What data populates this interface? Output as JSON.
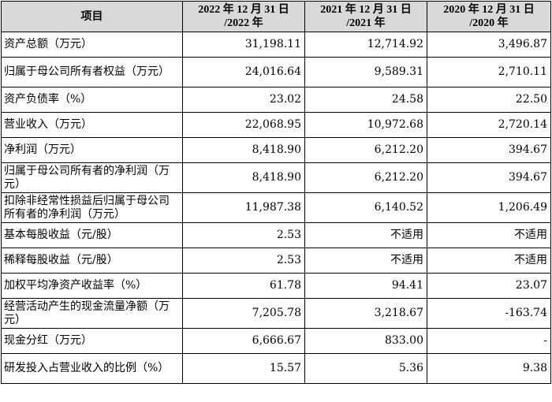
{
  "table": {
    "headers": [
      {
        "line1": "项目",
        "line2": ""
      },
      {
        "line1": "2022 年 12 月 31 日",
        "line2": "/2022 年"
      },
      {
        "line1": "2021 年 12 月 31 日",
        "line2": "/2021 年"
      },
      {
        "line1": "2020 年 12 月 31 日",
        "line2": "/2020 年"
      }
    ],
    "rows": [
      {
        "label": "资产总额（万元）",
        "v2022": "31,198.11",
        "v2021": "12,714.92",
        "v2020": "3,496.87"
      },
      {
        "label": "归属于母公司所有者权益（万元）",
        "v2022": "24,016.64",
        "v2021": "9,589.31",
        "v2020": "2,710.11"
      },
      {
        "label": "资产负债率（%）",
        "v2022": "23.02",
        "v2021": "24.58",
        "v2020": "22.50"
      },
      {
        "label": "营业收入（万元）",
        "v2022": "22,068.95",
        "v2021": "10,972.68",
        "v2020": "2,720.14"
      },
      {
        "label": "净利润（万元）",
        "v2022": "8,418.90",
        "v2021": "6,212.20",
        "v2020": "394.67"
      },
      {
        "label": "归属于母公司所有者的净利润（万元）",
        "v2022": "8,418.90",
        "v2021": "6,212.20",
        "v2020": "394.67"
      },
      {
        "label": "扣除非经常性损益后归属于母公司所有者的净利润（万元）",
        "v2022": "11,987.38",
        "v2021": "6,140.52",
        "v2020": "1,206.49"
      },
      {
        "label": "基本每股收益（元/股）",
        "v2022": "2.53",
        "v2021": "不适用",
        "v2020": "不适用"
      },
      {
        "label": "稀释每股收益（元/股）",
        "v2022": "2.53",
        "v2021": "不适用",
        "v2020": "不适用"
      },
      {
        "label": "加权平均净资产收益率（%）",
        "v2022": "61.78",
        "v2021": "94.41",
        "v2020": "23.07"
      },
      {
        "label": "经营活动产生的现金流量净额（万元）",
        "v2022": "7,205.78",
        "v2021": "3,218.67",
        "v2020": "-163.74"
      },
      {
        "label": "现金分红（万元）",
        "v2022": "6,666.67",
        "v2021": "833.00",
        "v2020": "-"
      },
      {
        "label": "研发投入占营业收入的比例（%）",
        "v2022": "15.57",
        "v2021": "5.36",
        "v2020": "9.38"
      }
    ]
  },
  "colors": {
    "header_bg": "#d9d9d9",
    "border": "#000000",
    "text": "#000000"
  }
}
